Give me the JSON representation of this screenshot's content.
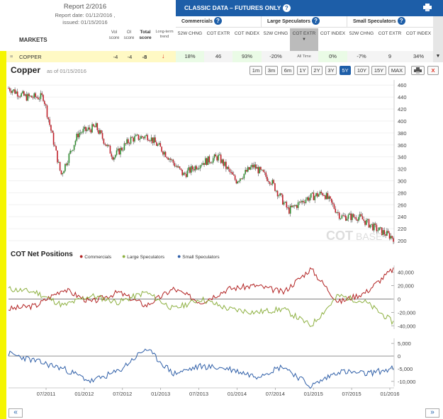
{
  "report": {
    "title": "Report 2/2016",
    "date": "Report date: 01/12/2016 ,",
    "issued": "issued: 01/15/2016"
  },
  "markets_header": {
    "label": "MARKETS",
    "vol": "Vol score",
    "oi": "OI score",
    "total": "Total score",
    "trend": "Long-term trend"
  },
  "classic": {
    "title": "CLASSIC DATA – FUTURES ONLY",
    "help": "?"
  },
  "groups": [
    {
      "name": "Commercials",
      "help": "?"
    },
    {
      "name": "Large Speculators",
      "help": "?"
    },
    {
      "name": "Small Speculators",
      "help": "?"
    }
  ],
  "cols": {
    "c52": "52W CHNG",
    "cext": "COT EXTR",
    "cidx": "COT INDEX",
    "l52": "52W CHNG",
    "lext": "COT EXTR",
    "lidx": "COT INDEX",
    "s52": "52W CHNG",
    "sext": "COT EXTR",
    "sidx": "COT INDEX"
  },
  "row": {
    "market": "COPPER",
    "vol": "-4",
    "oi": "-4",
    "total": "-8",
    "c52": "18%",
    "cext": "46",
    "cidx": "93%",
    "l52": "-20%",
    "lext": "All Time",
    "lidx": "0%",
    "s52": "-7%",
    "sext": "9",
    "sidx": "34%"
  },
  "chart_header": {
    "title": "Copper",
    "asof": "as of 01/15/2016"
  },
  "timeframes": [
    "1m",
    "3m",
    "6m",
    "1Y",
    "2Y",
    "3Y",
    "5Y",
    "10Y",
    "15Y",
    "MAX"
  ],
  "selected_timeframe": "5Y",
  "close_label": "X",
  "watermark": {
    "a": "COT",
    "b": "BASE"
  },
  "price_axis": [
    "460",
    "440",
    "420",
    "400",
    "380",
    "360",
    "340",
    "320",
    "300",
    "280",
    "260",
    "240",
    "220",
    "200"
  ],
  "cot_legend": {
    "title": "COT Net Positions",
    "s1": "Commercials",
    "s2": "Large Speculators",
    "s3": "Small Speculators"
  },
  "net_axis": [
    "40,000",
    "20,000",
    "0",
    "-20,000",
    "-40,000"
  ],
  "small_axis": [
    "5,000",
    "0",
    "-5,000",
    "-10,000"
  ],
  "date_axis": [
    "07/2011",
    "01/2012",
    "07/2012",
    "01/2013",
    "07/2013",
    "01/2014",
    "07/2014",
    "01/2015",
    "07/2015",
    "01/2016"
  ],
  "nav": {
    "prev": "«",
    "next": "»"
  },
  "colors": {
    "comm": "#b22222",
    "large": "#8db040",
    "small": "#2f5fa8",
    "brand": "#1d5ea8",
    "trend_down": "#e03020"
  },
  "chart_data": [
    {
      "type": "line",
      "title": "Copper",
      "x": [
        "05/2011",
        "07/2011",
        "09/2011",
        "10/2011",
        "01/2012",
        "03/2012",
        "06/2012",
        "09/2012",
        "01/2013",
        "03/2013",
        "06/2013",
        "09/2013",
        "01/2014",
        "03/2014",
        "07/2014",
        "11/2014",
        "01/2015",
        "03/2015",
        "05/2015",
        "07/2015",
        "09/2015",
        "11/2015",
        "01/2016"
      ],
      "series": [
        {
          "name": "Copper",
          "values": [
            455,
            440,
            440,
            310,
            380,
            390,
            340,
            370,
            375,
            345,
            310,
            330,
            340,
            300,
            325,
            300,
            250,
            270,
            280,
            240,
            240,
            220,
            205
          ]
        }
      ],
      "ylim": [
        200,
        465
      ]
    },
    {
      "type": "line",
      "title": "COT Net Positions",
      "x": [
        "05/2011",
        "09/2011",
        "01/2012",
        "05/2012",
        "09/2012",
        "01/2013",
        "05/2013",
        "09/2013",
        "01/2014",
        "05/2014",
        "09/2014",
        "01/2015",
        "05/2015",
        "09/2015",
        "01/2016"
      ],
      "series": [
        {
          "name": "Commercials",
          "values": [
            -15000,
            -10000,
            15000,
            -5000,
            10000,
            -10000,
            15000,
            -5000,
            15000,
            20000,
            10000,
            45000,
            -5000,
            10000,
            45000
          ]
        },
        {
          "name": "Large Speculators",
          "values": [
            15000,
            10000,
            -10000,
            5000,
            -5000,
            10000,
            -15000,
            0,
            -15000,
            -20000,
            -15000,
            -40000,
            5000,
            -5000,
            -35000
          ]
        },
        {
          "name": "Small Speculators",
          "values": [
            1000,
            -2000,
            -5000,
            -10000,
            -6000,
            3000,
            -7000,
            -4000,
            -5000,
            -8000,
            -4000,
            -12000,
            -6000,
            -7000,
            -5000
          ]
        }
      ],
      "ylim": [
        -45000,
        50000
      ]
    }
  ]
}
